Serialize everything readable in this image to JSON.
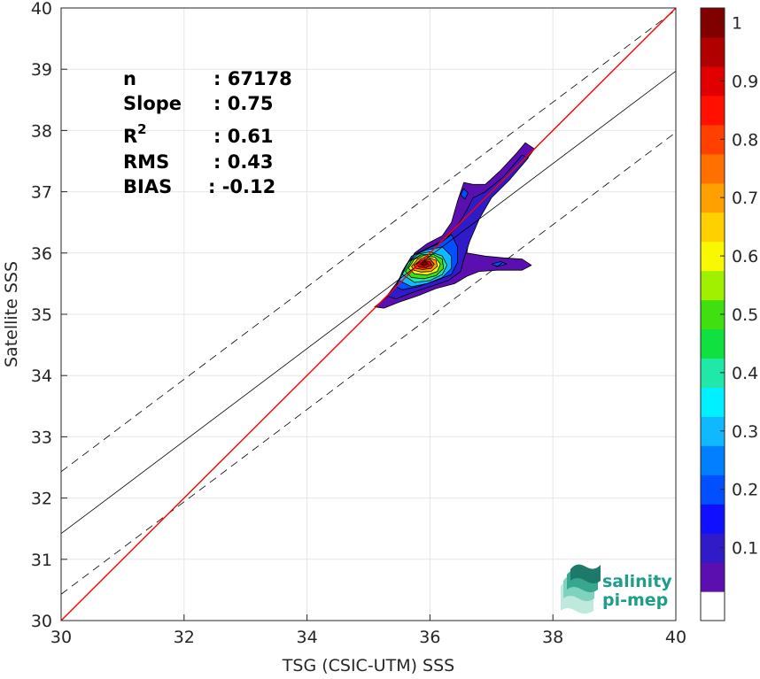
{
  "chart_data": {
    "type": "contour",
    "xlabel": "TSG (CSIC-UTM) SSS",
    "ylabel": "Satellite SSS",
    "xlim": [
      30,
      40
    ],
    "ylim": [
      30,
      40
    ],
    "x_ticks": [
      "30",
      "32",
      "34",
      "36",
      "38",
      "40"
    ],
    "y_ticks": [
      "30",
      "31",
      "32",
      "33",
      "34",
      "35",
      "36",
      "37",
      "38",
      "39",
      "40"
    ],
    "grid": true,
    "stats": [
      {
        "label": "n",
        "value": ": 67178"
      },
      {
        "label": "Slope",
        "value": ": 0.75"
      },
      {
        "label": "R",
        "sup": "2",
        "value": ": 0.61"
      },
      {
        "label": "RMS",
        "value": ": 0.43"
      },
      {
        "label": "BIAS",
        "value": ": -0.12"
      }
    ],
    "lines": {
      "identity": {
        "from": [
          30,
          30
        ],
        "to": [
          40,
          40
        ],
        "color": "#ff0000"
      },
      "regression": {
        "from": [
          30,
          31.42
        ],
        "to": [
          40,
          38.97
        ],
        "color": "#000000"
      },
      "upper_dashed": {
        "from": [
          30,
          32.43
        ],
        "to": [
          40,
          39.97
        ]
      },
      "lower_dashed": {
        "from": [
          30,
          30.43
        ],
        "to": [
          40,
          37.97
        ]
      }
    },
    "colorbar": {
      "ticks": [
        "0.1",
        "0.2",
        "0.3",
        "0.4",
        "0.5",
        "0.6",
        "0.7",
        "0.8",
        "0.9",
        "1"
      ],
      "colors": [
        "#ffffff",
        "#5b0fb0",
        "#2f1cc8",
        "#1010ff",
        "#0050ff",
        "#0080ff",
        "#10b8ff",
        "#00f0ff",
        "#20e8a8",
        "#10e040",
        "#40e010",
        "#a0f000",
        "#f8f800",
        "#ffd000",
        "#ffa000",
        "#ff7000",
        "#ff4000",
        "#ff1000",
        "#e00000",
        "#b00000",
        "#800000"
      ]
    },
    "density_contours": [
      {
        "level": 0.05,
        "points": [
          [
            35.1,
            35.12
          ],
          [
            35.3,
            35.28
          ],
          [
            35.5,
            35.52
          ],
          [
            35.6,
            35.72
          ],
          [
            35.75,
            36.0
          ],
          [
            35.95,
            36.15
          ],
          [
            36.2,
            36.28
          ],
          [
            36.35,
            36.5
          ],
          [
            36.45,
            36.85
          ],
          [
            36.55,
            37.15
          ],
          [
            36.7,
            37.12
          ],
          [
            36.9,
            37.12
          ],
          [
            37.15,
            37.35
          ],
          [
            37.4,
            37.62
          ],
          [
            37.55,
            37.8
          ],
          [
            37.7,
            37.7
          ],
          [
            37.55,
            37.5
          ],
          [
            37.25,
            37.25
          ],
          [
            37.0,
            36.95
          ],
          [
            36.8,
            36.6
          ],
          [
            36.65,
            36.3
          ],
          [
            36.6,
            36.0
          ],
          [
            36.9,
            35.95
          ],
          [
            37.2,
            35.92
          ],
          [
            37.5,
            35.9
          ],
          [
            37.65,
            35.8
          ],
          [
            37.5,
            35.72
          ],
          [
            37.1,
            35.72
          ],
          [
            36.8,
            35.7
          ],
          [
            36.6,
            35.62
          ],
          [
            36.4,
            35.5
          ],
          [
            36.1,
            35.42
          ],
          [
            35.8,
            35.3
          ],
          [
            35.5,
            35.2
          ],
          [
            35.25,
            35.1
          ]
        ]
      },
      {
        "level": 0.1,
        "points": [
          [
            35.3,
            35.3
          ],
          [
            35.45,
            35.5
          ],
          [
            35.6,
            35.75
          ],
          [
            35.8,
            36.0
          ],
          [
            36.0,
            36.1
          ],
          [
            36.25,
            36.22
          ],
          [
            36.45,
            36.45
          ],
          [
            36.6,
            36.7
          ],
          [
            36.7,
            36.9
          ],
          [
            36.9,
            37.0
          ],
          [
            37.2,
            37.25
          ],
          [
            37.5,
            37.6
          ],
          [
            37.6,
            37.55
          ],
          [
            37.3,
            37.2
          ],
          [
            37.0,
            36.9
          ],
          [
            36.8,
            36.55
          ],
          [
            36.65,
            36.2
          ],
          [
            36.55,
            35.9
          ],
          [
            36.5,
            35.7
          ],
          [
            36.3,
            35.55
          ],
          [
            36.0,
            35.45
          ],
          [
            35.7,
            35.35
          ],
          [
            35.45,
            35.25
          ]
        ]
      },
      {
        "level": 0.2,
        "points": [
          [
            35.45,
            35.45
          ],
          [
            35.55,
            35.7
          ],
          [
            35.7,
            35.95
          ],
          [
            35.9,
            36.05
          ],
          [
            36.15,
            36.15
          ],
          [
            36.35,
            36.3
          ],
          [
            36.45,
            36.1
          ],
          [
            36.45,
            35.85
          ],
          [
            36.35,
            35.65
          ],
          [
            36.1,
            35.55
          ],
          [
            35.8,
            35.45
          ],
          [
            35.55,
            35.4
          ]
        ]
      },
      {
        "level": 0.3,
        "points": [
          [
            35.5,
            35.55
          ],
          [
            35.6,
            35.78
          ],
          [
            35.75,
            35.97
          ],
          [
            35.95,
            36.05
          ],
          [
            36.2,
            36.1
          ],
          [
            36.35,
            35.95
          ],
          [
            36.35,
            35.75
          ],
          [
            36.2,
            35.6
          ],
          [
            35.95,
            35.5
          ],
          [
            35.7,
            35.45
          ]
        ]
      },
      {
        "level": 0.4,
        "points": [
          [
            35.55,
            35.65
          ],
          [
            35.65,
            35.85
          ],
          [
            35.8,
            35.98
          ],
          [
            36.0,
            36.02
          ],
          [
            36.2,
            35.95
          ],
          [
            36.28,
            35.8
          ],
          [
            36.2,
            35.65
          ],
          [
            36.0,
            35.55
          ],
          [
            35.75,
            35.52
          ]
        ]
      },
      {
        "level": 0.5,
        "points": [
          [
            35.6,
            35.7
          ],
          [
            35.7,
            35.88
          ],
          [
            35.85,
            35.97
          ],
          [
            36.05,
            35.98
          ],
          [
            36.2,
            35.9
          ],
          [
            36.22,
            35.75
          ],
          [
            36.1,
            35.63
          ],
          [
            35.9,
            35.58
          ],
          [
            35.7,
            35.6
          ]
        ]
      },
      {
        "level": 0.6,
        "points": [
          [
            35.65,
            35.75
          ],
          [
            35.75,
            35.9
          ],
          [
            35.9,
            35.96
          ],
          [
            36.08,
            35.93
          ],
          [
            36.17,
            35.82
          ],
          [
            36.12,
            35.7
          ],
          [
            35.95,
            35.64
          ],
          [
            35.75,
            35.66
          ]
        ]
      },
      {
        "level": 0.7,
        "points": [
          [
            35.7,
            35.78
          ],
          [
            35.8,
            35.9
          ],
          [
            35.95,
            35.94
          ],
          [
            36.1,
            35.88
          ],
          [
            36.12,
            35.78
          ],
          [
            36.02,
            35.7
          ],
          [
            35.85,
            35.69
          ],
          [
            35.74,
            35.72
          ]
        ]
      },
      {
        "level": 0.8,
        "points": [
          [
            35.74,
            35.8
          ],
          [
            35.85,
            35.89
          ],
          [
            36.0,
            35.9
          ],
          [
            36.07,
            35.82
          ],
          [
            36.02,
            35.75
          ],
          [
            35.88,
            35.73
          ],
          [
            35.77,
            35.75
          ]
        ]
      },
      {
        "level": 0.9,
        "points": [
          [
            35.78,
            35.82
          ],
          [
            35.88,
            35.88
          ],
          [
            36.0,
            35.86
          ],
          [
            36.03,
            35.8
          ],
          [
            35.93,
            35.76
          ],
          [
            35.82,
            35.77
          ]
        ]
      },
      {
        "level": 1.0,
        "points": [
          [
            35.83,
            35.83
          ],
          [
            35.92,
            35.86
          ],
          [
            35.98,
            35.82
          ],
          [
            35.9,
            35.79
          ]
        ]
      }
    ],
    "islands": [
      {
        "level": 0.2,
        "points": [
          [
            36.5,
            36.95
          ],
          [
            36.55,
            37.05
          ],
          [
            36.62,
            36.98
          ],
          [
            36.57,
            36.88
          ]
        ]
      },
      {
        "level": 0.2,
        "points": [
          [
            37.0,
            35.82
          ],
          [
            37.15,
            35.86
          ],
          [
            37.25,
            35.82
          ],
          [
            37.1,
            35.78
          ]
        ]
      }
    ]
  },
  "logo": {
    "line1": "salinity",
    "line2": "pi-mep"
  }
}
